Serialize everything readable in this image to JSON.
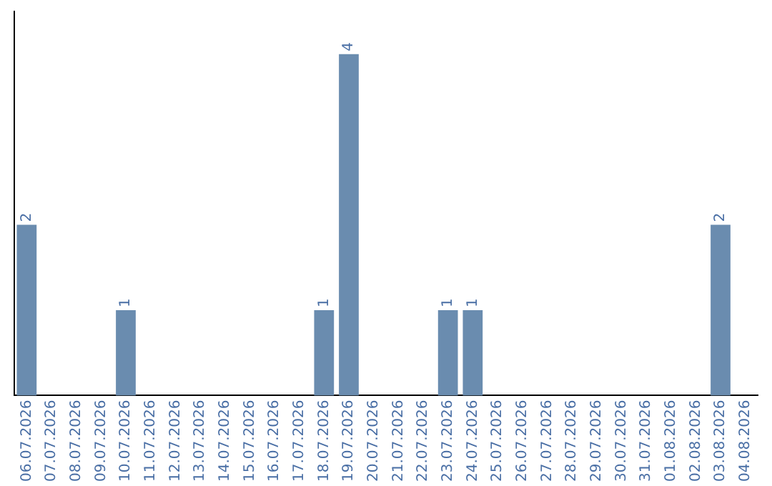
{
  "chart_data": {
    "type": "bar",
    "categories": [
      "06.07.2026",
      "07.07.2026",
      "08.07.2026",
      "09.07.2026",
      "10.07.2026",
      "11.07.2026",
      "12.07.2026",
      "13.07.2026",
      "14.07.2026",
      "15.07.2026",
      "16.07.2026",
      "17.07.2026",
      "18.07.2026",
      "19.07.2026",
      "20.07.2026",
      "21.07.2026",
      "22.07.2026",
      "23.07.2026",
      "24.07.2026",
      "25.07.2026",
      "26.07.2026",
      "27.07.2026",
      "28.07.2026",
      "29.07.2026",
      "30.07.2026",
      "31.07.2026",
      "01.08.2026",
      "02.08.2026",
      "03.08.2026",
      "04.08.2026"
    ],
    "values": [
      2,
      0,
      0,
      0,
      1,
      0,
      0,
      0,
      0,
      0,
      0,
      0,
      1,
      4,
      0,
      0,
      0,
      1,
      1,
      0,
      0,
      0,
      0,
      0,
      0,
      0,
      0,
      0,
      2,
      0
    ],
    "value_labels": [
      "2",
      null,
      null,
      null,
      "1",
      null,
      null,
      null,
      null,
      null,
      null,
      null,
      "1",
      "4",
      null,
      null,
      null,
      "1",
      "1",
      null,
      null,
      null,
      null,
      null,
      null,
      null,
      null,
      null,
      "2",
      null
    ],
    "color": "#6a8caf",
    "grid": false,
    "legend": false,
    "tick_labels": "x"
  }
}
